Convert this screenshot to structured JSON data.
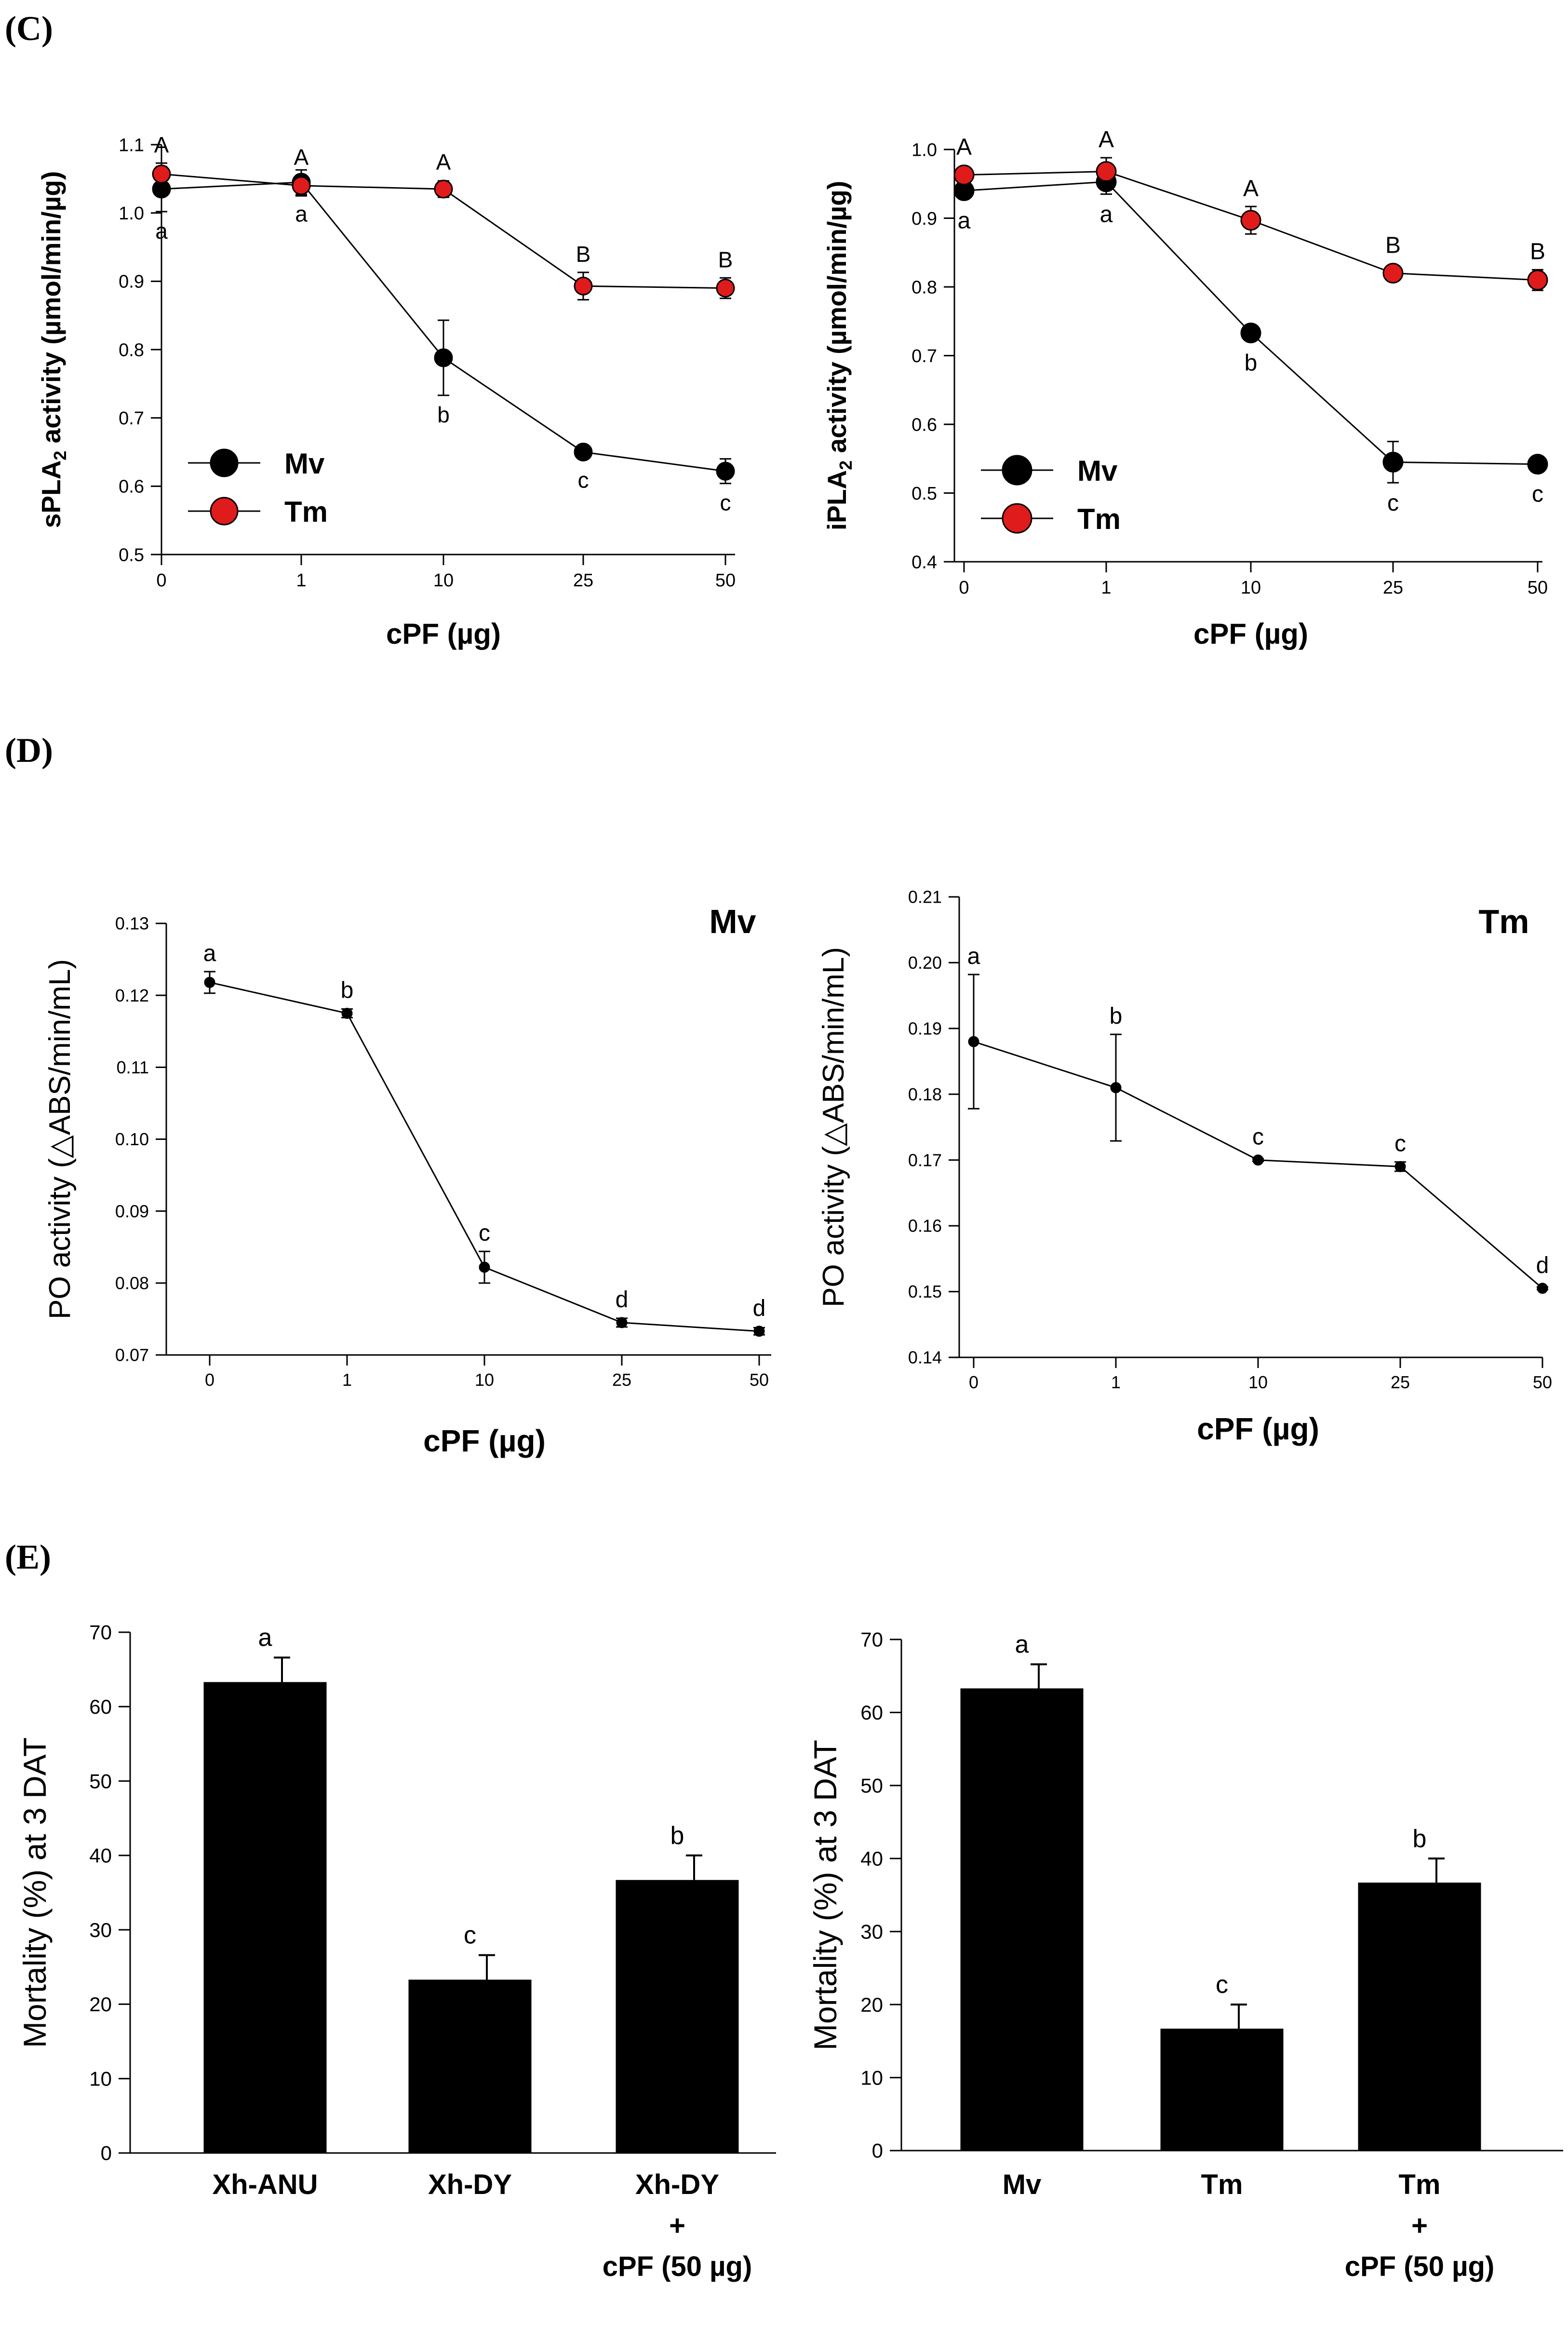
{
  "panels": {
    "c": "(C)",
    "d": "(D)",
    "e": "(E)"
  },
  "colors": {
    "mv": "#000000",
    "tm": "#e01b1b",
    "line": "#000000",
    "bar": "#000000"
  },
  "chart_data": [
    {
      "id": "spla2",
      "type": "line",
      "panel": "C",
      "title": "",
      "xlabel": "cPF (µg)",
      "ylabel_pre": "sPLA",
      "ylabel_sub": "2",
      "ylabel_post": " activity (µmol/min/µg)",
      "categories": [
        "0",
        "1",
        "10",
        "25",
        "50"
      ],
      "ylim": [
        0.5,
        1.1
      ],
      "yticks": [
        0.5,
        0.6,
        0.7,
        0.8,
        0.9,
        1.0,
        1.1
      ],
      "ytick_labels": [
        "0.5",
        "0.6",
        "0.7",
        "0.8",
        "0.9",
        "1.0",
        "1.1"
      ],
      "legend": {
        "placement": "bottom-left",
        "entries": [
          "Mv",
          "Tm"
        ]
      },
      "series": [
        {
          "name": "Mv",
          "color": "mv",
          "values": [
            1.035,
            1.045,
            0.788,
            0.65,
            0.622
          ],
          "errors": [
            0.033,
            0.018,
            0.055,
            0.01,
            0.018
          ],
          "letters": [
            "a",
            "a",
            "b",
            "c",
            "c"
          ],
          "letter_pos": "below"
        },
        {
          "name": "Tm",
          "color": "tm",
          "values": [
            1.057,
            1.04,
            1.035,
            0.893,
            0.89
          ],
          "errors": [
            0.016,
            0.015,
            0.012,
            0.02,
            0.015
          ],
          "letters": [
            "A",
            "A",
            "A",
            "B",
            "B"
          ],
          "letter_pos": "above"
        }
      ]
    },
    {
      "id": "ipla2",
      "type": "line",
      "panel": "C",
      "title": "",
      "xlabel": "cPF (µg)",
      "ylabel_pre": "iPLA",
      "ylabel_sub": "2",
      "ylabel_post": " activity (µmol/min/µg)",
      "categories": [
        "0",
        "1",
        "10",
        "25",
        "50"
      ],
      "ylim": [
        0.4,
        1.0
      ],
      "yticks": [
        0.4,
        0.5,
        0.6,
        0.7,
        0.8,
        0.9,
        1.0
      ],
      "ytick_labels": [
        "0.4",
        "0.5",
        "0.6",
        "0.7",
        "0.8",
        "0.9",
        "1.0"
      ],
      "legend": {
        "placement": "bottom-left",
        "entries": [
          "Mv",
          "Tm"
        ]
      },
      "series": [
        {
          "name": "Mv",
          "color": "mv",
          "values": [
            0.94,
            0.953,
            0.733,
            0.545,
            0.542
          ],
          "errors": [
            0.01,
            0.018,
            0.005,
            0.03,
            0.01
          ],
          "letters": [
            "a",
            "a",
            "b",
            "c",
            "c"
          ],
          "letter_pos": "below"
        },
        {
          "name": "Tm",
          "color": "tm",
          "values": [
            0.963,
            0.968,
            0.897,
            0.82,
            0.81
          ],
          "errors": [
            0.01,
            0.02,
            0.02,
            0.006,
            0.015
          ],
          "letters": [
            "A",
            "A",
            "A",
            "B",
            "B"
          ],
          "letter_pos": "above"
        }
      ]
    },
    {
      "id": "po-mv",
      "type": "line",
      "panel": "D",
      "title": "Mv",
      "xlabel": "cPF (µg)",
      "ylabel": "PO activity (△ABS/min/mL)",
      "categories": [
        "0",
        "1",
        "10",
        "25",
        "50"
      ],
      "ylim": [
        0.07,
        0.13
      ],
      "yticks": [
        0.07,
        0.08,
        0.09,
        0.1,
        0.11,
        0.12,
        0.13
      ],
      "ytick_labels": [
        "0.07",
        "0.08",
        "0.09",
        "0.10",
        "0.11",
        "0.12",
        "0.13"
      ],
      "series": [
        {
          "name": "Mv",
          "color": "mv",
          "values": [
            0.1218,
            0.1175,
            0.0822,
            0.0745,
            0.0733
          ],
          "errors": [
            0.0015,
            0.0006,
            0.0022,
            0.0006,
            0.0005
          ],
          "letters": [
            "a",
            "b",
            "c",
            "d",
            "d"
          ],
          "letter_pos": "above"
        }
      ]
    },
    {
      "id": "po-tm",
      "type": "line",
      "panel": "D",
      "title": "Tm",
      "xlabel": "cPF (µg)",
      "ylabel": "PO activity (△ABS/min/mL)",
      "categories": [
        "0",
        "1",
        "10",
        "25",
        "50"
      ],
      "ylim": [
        0.14,
        0.21
      ],
      "yticks": [
        0.14,
        0.15,
        0.16,
        0.17,
        0.18,
        0.19,
        0.2,
        0.21
      ],
      "ytick_labels": [
        "0.14",
        "0.15",
        "0.16",
        "0.17",
        "0.18",
        "0.19",
        "0.20",
        "0.21"
      ],
      "series": [
        {
          "name": "Tm",
          "color": "mv",
          "values": [
            0.188,
            0.181,
            0.17,
            0.169,
            0.1505
          ],
          "errors": [
            0.0102,
            0.0081,
            0.0002,
            0.0007,
            0.0002
          ],
          "letters": [
            "a",
            "b",
            "c",
            "c",
            "d"
          ],
          "letter_pos": "above"
        }
      ]
    },
    {
      "id": "mort-xh",
      "type": "bar",
      "panel": "E",
      "title": "",
      "xlabel": "",
      "ylabel": "Mortality (%) at 3 DAT",
      "categories": [
        "Xh-ANU",
        "Xh-DY",
        "Xh-DY\n+\ncPF (50 µg)"
      ],
      "ylim": [
        0,
        70
      ],
      "yticks": [
        0,
        10,
        20,
        30,
        40,
        50,
        60,
        70
      ],
      "ytick_labels": [
        "0",
        "10",
        "20",
        "30",
        "40",
        "50",
        "60",
        "70"
      ],
      "values": [
        63.3,
        23.3,
        36.7
      ],
      "errors": [
        3.3,
        3.3,
        3.3
      ],
      "letters": [
        "a",
        "c",
        "b"
      ]
    },
    {
      "id": "mort-mv",
      "type": "bar",
      "panel": "E",
      "title": "",
      "xlabel": "",
      "ylabel": "Mortality (%) at 3 DAT",
      "categories": [
        "Mv",
        "Tm",
        "Tm\n+\ncPF (50 µg)"
      ],
      "ylim": [
        0,
        70
      ],
      "yticks": [
        0,
        10,
        20,
        30,
        40,
        50,
        60,
        70
      ],
      "ytick_labels": [
        "0",
        "10",
        "20",
        "30",
        "40",
        "50",
        "60",
        "70"
      ],
      "values": [
        63.3,
        16.7,
        36.7
      ],
      "errors": [
        3.3,
        3.3,
        3.3
      ],
      "letters": [
        "a",
        "c",
        "b"
      ]
    }
  ]
}
